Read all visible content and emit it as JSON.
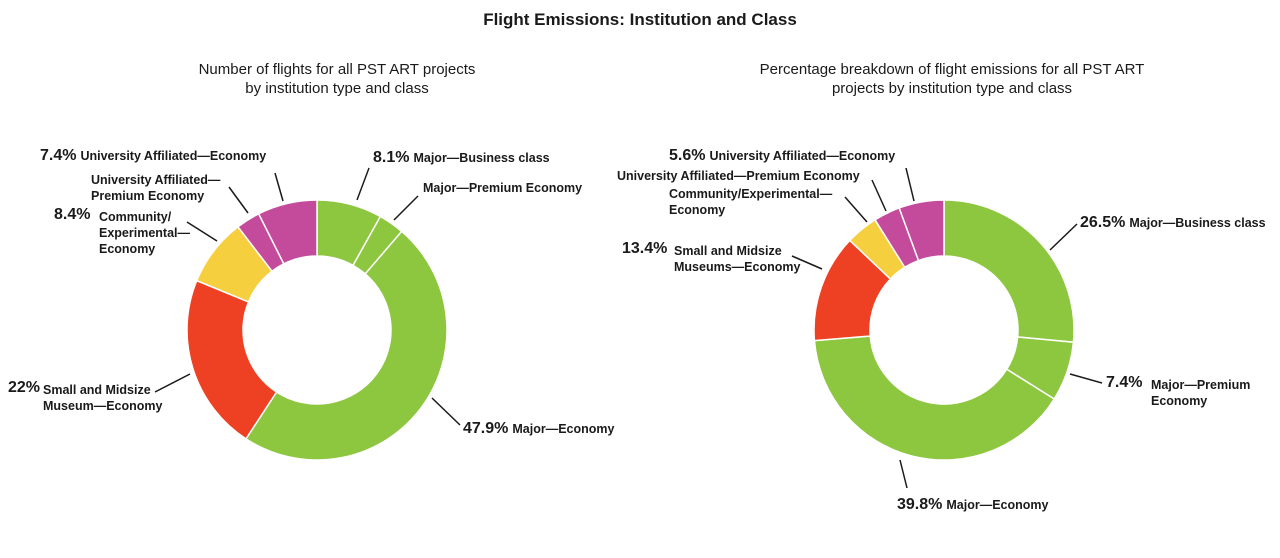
{
  "title": "Flight Emissions: Institution and Class",
  "colors": {
    "major": "#8dc63f",
    "small_midsize": "#ee4023",
    "community": "#f5cf3d",
    "university": "#c44a9c"
  },
  "chart_data": [
    {
      "type": "pie",
      "donut": true,
      "title": "Number of flights for all PST ART projects by institution type and class",
      "title_lines": [
        "Number of flights for all PST ART projects",
        "by institution type and class"
      ],
      "slices": [
        {
          "label": "Major—Business class",
          "value": 8.1,
          "pct_label": "8.1%",
          "color": "#8dc63f"
        },
        {
          "label": "Major—Premium Economy",
          "value": 3.2,
          "pct_label": "",
          "color": "#8dc63f"
        },
        {
          "label": "Major—Economy",
          "value": 47.9,
          "pct_label": "47.9%",
          "color": "#8dc63f"
        },
        {
          "label": "Small and Midsize Museum—Economy",
          "label_lines": [
            "Small and Midsize",
            "Museum—Economy"
          ],
          "value": 22,
          "pct_label": "22%",
          "color": "#ee4023"
        },
        {
          "label": "Community/Experimental—Economy",
          "label_lines": [
            "Community/",
            "Experimental—",
            "Economy"
          ],
          "value": 8.4,
          "pct_label": "8.4%",
          "color": "#f5cf3d"
        },
        {
          "label": "University Affiliated—Premium Economy",
          "label_lines": [
            "University Affiliated—",
            "Premium Economy"
          ],
          "value": 3.0,
          "pct_label": "",
          "color": "#c44a9c"
        },
        {
          "label": "University Affiliated—Economy",
          "value": 7.4,
          "pct_label": "7.4%",
          "color": "#c44a9c"
        }
      ]
    },
    {
      "type": "pie",
      "donut": true,
      "title": "Percentage breakdown of flight emissions for all PST ART projects by institution type and class",
      "title_lines": [
        "Percentage breakdown of flight emissions for all PST ART",
        "projects by institution type and class"
      ],
      "slices": [
        {
          "label": "Major—Business class",
          "value": 26.5,
          "pct_label": "26.5%",
          "color": "#8dc63f"
        },
        {
          "label": "Major—Premium Economy",
          "label_lines": [
            "Major—Premium",
            "Economy"
          ],
          "value": 7.4,
          "pct_label": "7.4%",
          "color": "#8dc63f"
        },
        {
          "label": "Major—Economy",
          "value": 39.8,
          "pct_label": "39.8%",
          "color": "#8dc63f"
        },
        {
          "label": "Small and Midsize Museums—Economy",
          "label_lines": [
            "Small and Midsize",
            "Museums—Economy"
          ],
          "value": 13.4,
          "pct_label": "13.4%",
          "color": "#ee4023"
        },
        {
          "label": "Community/Experimental—Economy",
          "label_lines": [
            "Community/Experimental—",
            "Economy"
          ],
          "value": 4.0,
          "pct_label": "",
          "color": "#f5cf3d"
        },
        {
          "label": "University Affiliated—Premium Economy",
          "value": 3.3,
          "pct_label": "",
          "color": "#c44a9c"
        },
        {
          "label": "University Affiliated—Economy",
          "value": 5.6,
          "pct_label": "5.6%",
          "color": "#c44a9c"
        }
      ]
    }
  ]
}
